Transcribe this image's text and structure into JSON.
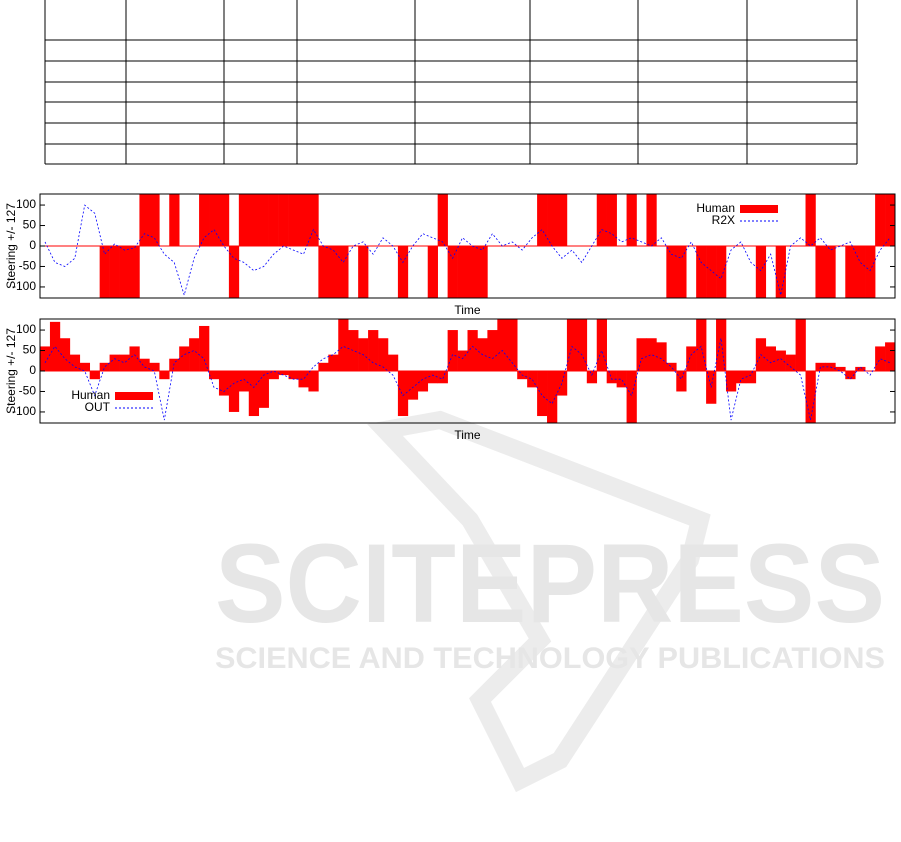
{
  "chart_data": [
    {
      "type": "line",
      "ylabel": "Steering +/- 127",
      "xlabel": "Time",
      "ylim": [
        -127,
        127
      ],
      "yticks": [
        100,
        50,
        0,
        -50,
        -100
      ],
      "legend": "top-right",
      "series": [
        {
          "name": "Human",
          "color": "#ff0000",
          "fill": true,
          "values": [
            0,
            0,
            0,
            0,
            0,
            0,
            -127,
            -127,
            -127,
            -127,
            127,
            127,
            0,
            127,
            0,
            0,
            127,
            127,
            127,
            -127,
            127,
            127,
            127,
            127,
            127,
            127,
            127,
            127,
            -127,
            -127,
            -127,
            0,
            -127,
            0,
            0,
            0,
            -127,
            0,
            0,
            -127,
            127,
            -127,
            -127,
            -127,
            -127,
            0,
            0,
            0,
            0,
            0,
            127,
            127,
            127,
            0,
            0,
            0,
            127,
            127,
            0,
            127,
            0,
            127,
            0,
            -127,
            -127,
            0,
            -127,
            -127,
            -127,
            0,
            0,
            0,
            -127,
            0,
            -127,
            0,
            0,
            127,
            -127,
            -127,
            0,
            -127,
            -127,
            -127,
            127,
            127
          ]
        },
        {
          "name": "R2X",
          "color": "#0000ff",
          "dashed": true,
          "values": [
            10,
            -40,
            -50,
            -30,
            100,
            80,
            -20,
            5,
            -10,
            -5,
            30,
            20,
            -20,
            -40,
            -120,
            -30,
            20,
            40,
            0,
            -30,
            -40,
            -60,
            -50,
            -20,
            0,
            -10,
            -20,
            40,
            0,
            -10,
            -40,
            0,
            10,
            -20,
            20,
            0,
            -40,
            0,
            30,
            20,
            10,
            -30,
            20,
            0,
            -10,
            30,
            0,
            10,
            -10,
            20,
            40,
            0,
            -30,
            -10,
            -40,
            0,
            40,
            30,
            10,
            20,
            10,
            0,
            20,
            -20,
            -30,
            10,
            -40,
            -60,
            -80,
            -10,
            10,
            -40,
            -60,
            -20,
            -120,
            0,
            20,
            0,
            20,
            -10,
            0,
            10,
            -40,
            -60,
            -10,
            20
          ]
        }
      ]
    },
    {
      "type": "line",
      "ylabel": "Steering +/- 127",
      "xlabel": "Time",
      "ylim": [
        -127,
        127
      ],
      "yticks": [
        100,
        50,
        0,
        -50,
        -100
      ],
      "legend": "bottom-left",
      "series": [
        {
          "name": "Human",
          "color": "#ff0000",
          "fill": true,
          "values": [
            60,
            120,
            80,
            40,
            20,
            -20,
            20,
            40,
            40,
            60,
            30,
            20,
            -20,
            30,
            60,
            80,
            110,
            -20,
            -60,
            -100,
            -50,
            -110,
            -90,
            -20,
            -10,
            -20,
            -40,
            -50,
            20,
            40,
            127,
            100,
            80,
            100,
            80,
            40,
            -110,
            -70,
            -50,
            -30,
            -30,
            100,
            50,
            100,
            80,
            100,
            127,
            127,
            -20,
            -40,
            -110,
            -127,
            -60,
            127,
            127,
            -30,
            127,
            -30,
            -40,
            -127,
            80,
            80,
            70,
            20,
            -50,
            60,
            127,
            -80,
            127,
            -50,
            -30,
            -30,
            80,
            60,
            50,
            40,
            127,
            -127,
            20,
            20,
            10,
            -20,
            10,
            0,
            60,
            70
          ]
        },
        {
          "name": "OUT",
          "color": "#0000ff",
          "dashed": true,
          "values": [
            20,
            60,
            30,
            10,
            0,
            -60,
            10,
            30,
            20,
            40,
            10,
            0,
            -120,
            20,
            40,
            50,
            30,
            -40,
            -50,
            -30,
            -20,
            -40,
            -10,
            0,
            -10,
            -20,
            -20,
            10,
            30,
            40,
            60,
            50,
            40,
            20,
            10,
            -10,
            -60,
            -40,
            -20,
            -10,
            -20,
            40,
            30,
            60,
            40,
            30,
            50,
            20,
            -10,
            -20,
            -60,
            -80,
            -30,
            60,
            40,
            -10,
            50,
            -20,
            -20,
            -60,
            30,
            40,
            30,
            10,
            -20,
            40,
            60,
            -40,
            80,
            -120,
            -20,
            -10,
            40,
            20,
            30,
            10,
            -10,
            -120,
            10,
            10,
            0,
            -20,
            10,
            -10,
            30,
            20
          ]
        }
      ]
    }
  ],
  "watermark": {
    "title": "SCITEPRESS",
    "subtitle": "SCIENCE AND TECHNOLOGY PUBLICATIONS"
  }
}
